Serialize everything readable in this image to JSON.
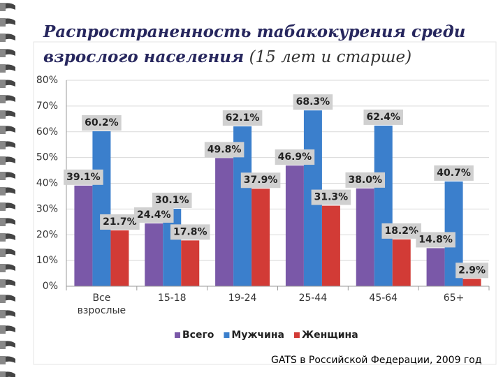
{
  "chart_data": {
    "type": "bar",
    "title": "Распространенность табакокурения среди взрослого населения",
    "subtitle": "(15 лет и старше)",
    "source": "GATS в Российской Федерации, 2009 год",
    "categories": [
      "Все взрослые",
      "15-18",
      "19-24",
      "25-44",
      "45-64",
      "65+"
    ],
    "series": [
      {
        "name": "Всего",
        "color": "#7a58a8",
        "values": [
          39.1,
          24.4,
          49.8,
          46.9,
          38.0,
          14.8
        ],
        "value_labels": [
          "39.1%",
          "24.4%",
          "49.8%",
          "46.9%",
          "38.0%",
          "14.8%"
        ]
      },
      {
        "name": "Мужчина",
        "color": "#3b7fcc",
        "values": [
          60.2,
          30.1,
          62.1,
          68.3,
          62.4,
          40.7
        ],
        "value_labels": [
          "60.2%",
          "30.1%",
          "62.1%",
          "68.3%",
          "62.4%",
          "40.7%"
        ]
      },
      {
        "name": "Женщина",
        "color": "#d23b36",
        "values": [
          21.7,
          17.8,
          37.9,
          31.3,
          18.2,
          2.9
        ],
        "value_labels": [
          "21.7%",
          "17.8%",
          "37.9%",
          "31.3%",
          "18.2%",
          "2.9%"
        ]
      }
    ],
    "ylim": [
      0,
      80
    ],
    "yticks": [
      {
        "value": 0,
        "label": "0%"
      },
      {
        "value": 10,
        "label": "10%"
      },
      {
        "value": 20,
        "label": "20%"
      },
      {
        "value": 30,
        "label": "30%"
      },
      {
        "value": 40,
        "label": "40%"
      },
      {
        "value": 50,
        "label": "50%"
      },
      {
        "value": 60,
        "label": "60%"
      },
      {
        "value": 70,
        "label": "70%"
      },
      {
        "value": 80,
        "label": "80%"
      }
    ],
    "grid": true,
    "legend": "bottom"
  }
}
